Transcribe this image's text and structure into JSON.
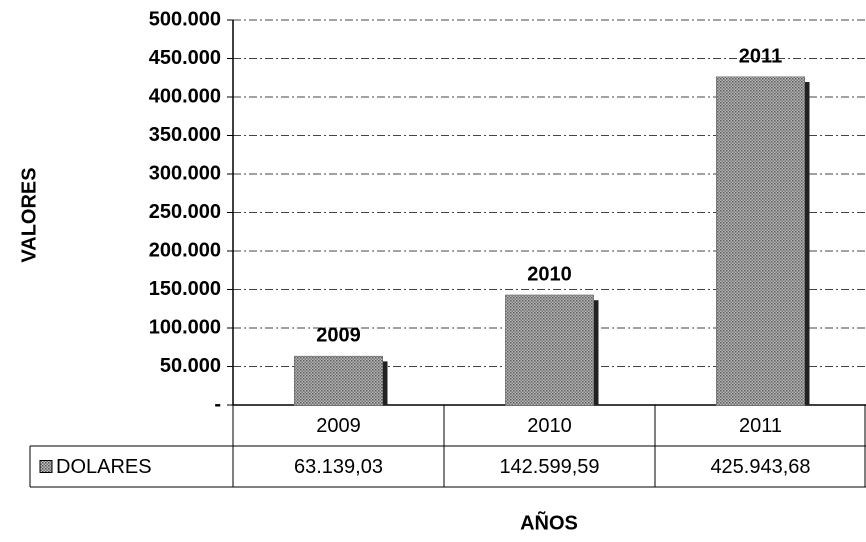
{
  "chart_data": {
    "type": "bar",
    "categories": [
      "2009",
      "2010",
      "2011"
    ],
    "series": [
      {
        "name": "DOLARES",
        "color": "#8c8c8c",
        "values": [
          63139.03,
          142599.59,
          425943.68
        ],
        "value_labels": [
          "63.139,03",
          "142.599,59",
          "425.943,68"
        ]
      }
    ],
    "ylim": [
      0,
      500000
    ],
    "yticks": [
      {
        "value": 0,
        "label": "-"
      },
      {
        "value": 50000,
        "label": "50.000"
      },
      {
        "value": 100000,
        "label": "100.000"
      },
      {
        "value": 150000,
        "label": "150.000"
      },
      {
        "value": 200000,
        "label": "200.000"
      },
      {
        "value": 250000,
        "label": "250.000"
      },
      {
        "value": 300000,
        "label": "300.000"
      },
      {
        "value": 350000,
        "label": "350.000"
      },
      {
        "value": 400000,
        "label": "400.000"
      },
      {
        "value": 450000,
        "label": "450.000"
      },
      {
        "value": 500000,
        "label": "500.000"
      }
    ],
    "y_label": "VALORES",
    "x_label": "AÑOS",
    "grid": true
  }
}
